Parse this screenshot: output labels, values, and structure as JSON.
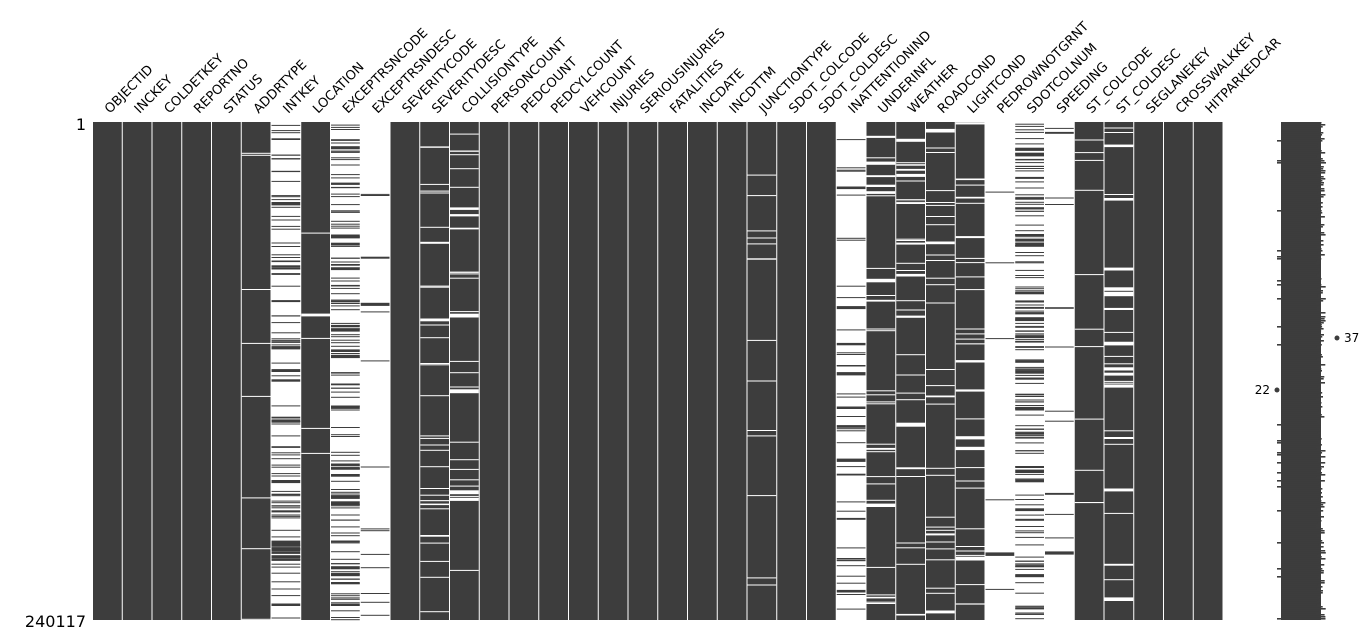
{
  "chart_data": {
    "type": "heatmap",
    "row_labels": {
      "top": "1",
      "bottom": "240117"
    },
    "columns": [
      {
        "name": "OBJECTID",
        "completeness": 1.0
      },
      {
        "name": "INCKEY",
        "completeness": 1.0
      },
      {
        "name": "COLDETKEY",
        "completeness": 1.0
      },
      {
        "name": "REPORTNO",
        "completeness": 1.0
      },
      {
        "name": "STATUS",
        "completeness": 1.0
      },
      {
        "name": "ADDRTYPE",
        "completeness": 0.97
      },
      {
        "name": "INTKEY",
        "completeness": 0.33
      },
      {
        "name": "LOCATION",
        "completeness": 0.98
      },
      {
        "name": "EXCEPTRSNCODE",
        "completeness": 0.46
      },
      {
        "name": "EXCEPTRSNDESC",
        "completeness": 0.05
      },
      {
        "name": "SEVERITYCODE",
        "completeness": 1.0
      },
      {
        "name": "SEVERITYDESC",
        "completeness": 0.88
      },
      {
        "name": "COLLISIONTYPE",
        "completeness": 0.88
      },
      {
        "name": "PERSONCOUNT",
        "completeness": 1.0
      },
      {
        "name": "PEDCOUNT",
        "completeness": 1.0
      },
      {
        "name": "PEDCYLCOUNT",
        "completeness": 1.0
      },
      {
        "name": "VEHCOUNT",
        "completeness": 1.0
      },
      {
        "name": "INJURIES",
        "completeness": 1.0
      },
      {
        "name": "SERIOUSINJURIES",
        "completeness": 1.0
      },
      {
        "name": "FATALITIES",
        "completeness": 1.0
      },
      {
        "name": "INCDATE",
        "completeness": 1.0
      },
      {
        "name": "INCDTTM",
        "completeness": 1.0
      },
      {
        "name": "JUNCTIONTYPE",
        "completeness": 0.95
      },
      {
        "name": "SDOT_COLCODE",
        "completeness": 1.0
      },
      {
        "name": "SDOT_COLDESC",
        "completeness": 1.0
      },
      {
        "name": "INATTENTIONIND",
        "completeness": 0.14
      },
      {
        "name": "UNDERINFL",
        "completeness": 0.88
      },
      {
        "name": "WEATHER",
        "completeness": 0.88
      },
      {
        "name": "ROADCOND",
        "completeness": 0.88
      },
      {
        "name": "LIGHTCOND",
        "completeness": 0.88
      },
      {
        "name": "PEDROWNOTGRNT",
        "completeness": 0.02
      },
      {
        "name": "SDOTCOLNUM",
        "completeness": 0.54
      },
      {
        "name": "SPEEDING",
        "completeness": 0.04
      },
      {
        "name": "ST_COLCODE",
        "completeness": 0.96
      },
      {
        "name": "ST_COLDESC",
        "completeness": 0.88
      },
      {
        "name": "SEGLANEKEY",
        "completeness": 1.0
      },
      {
        "name": "CROSSWALKKEY",
        "completeness": 1.0
      },
      {
        "name": "HITPARKEDCAR",
        "completeness": 1.0
      }
    ],
    "sparkline": {
      "min_label": "22",
      "max_label": "37"
    }
  }
}
